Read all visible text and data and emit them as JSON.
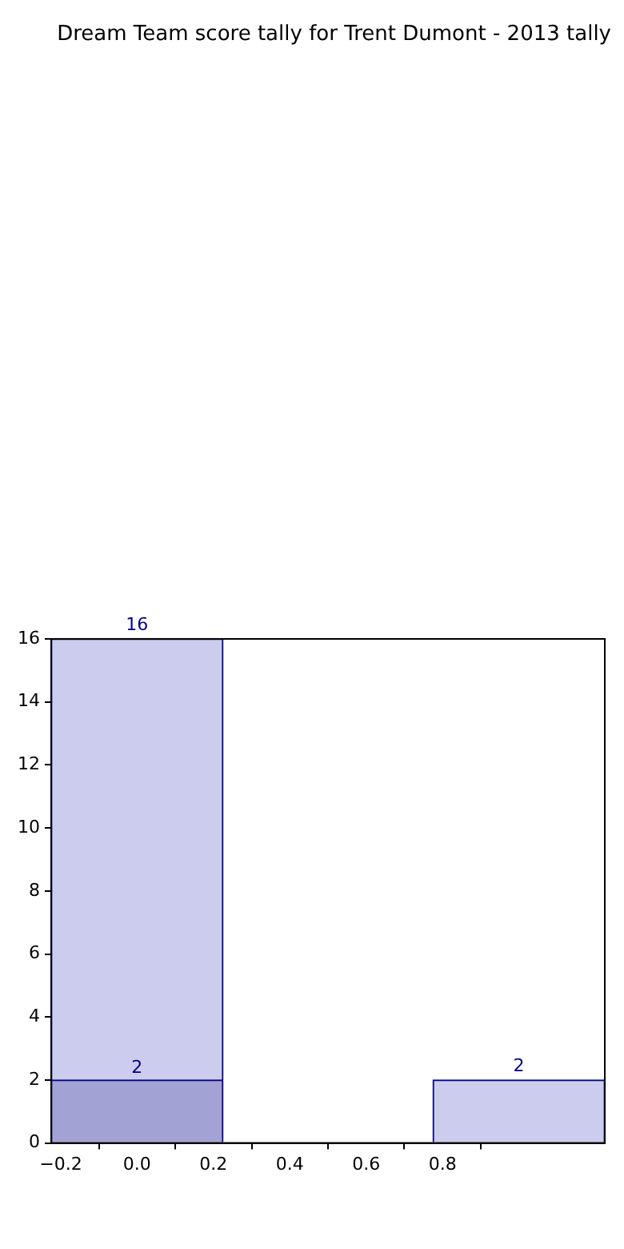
{
  "chart_data": {
    "type": "bar",
    "title": "Dream Team score tally for Trent Dumont - 2013 tally",
    "x": [
      0,
      1
    ],
    "stacked": true,
    "series": [
      {
        "color": "#a2a2d4",
        "values": [
          2,
          null
        ],
        "value_labels": [
          "2",
          null
        ]
      },
      {
        "color": "#ccccee",
        "values": [
          14,
          2
        ]
      }
    ],
    "totals": [
      "16",
      "2"
    ],
    "xlim": [
      -0.225,
      1.225
    ],
    "xticks": [
      {
        "value": -0.2,
        "label": "−0.2"
      },
      {
        "value": 0,
        "label": "0.0"
      },
      0.2,
      0.4,
      0.6,
      0.8
    ],
    "ylim": [
      0,
      16
    ],
    "yticks": [
      0,
      2,
      4,
      6,
      8,
      10,
      12,
      14,
      16
    ],
    "grid": false,
    "legend": false
  }
}
